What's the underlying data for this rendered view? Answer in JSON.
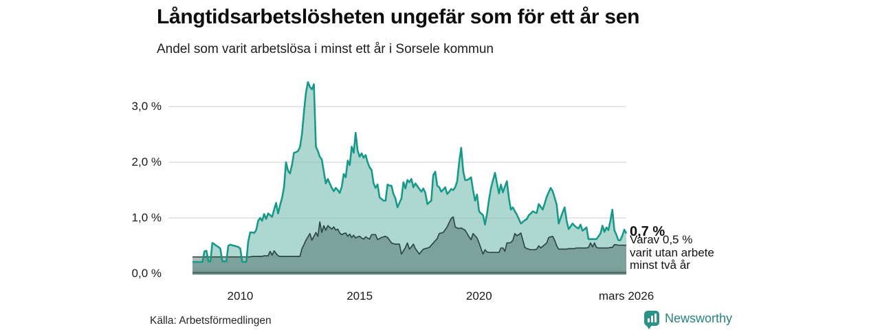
{
  "title": "Långtidsarbetslösheten ungefär som för ett år sen",
  "subtitle": "Andel som varit arbetslösa i minst ett år i Sorsele kommun",
  "source": "Källa: Arbetsförmedlingen",
  "brand": {
    "name": "Newsworthy"
  },
  "annotations": {
    "latest_total": "0,7 %",
    "subset_note": "Varav 0,5 %\nvarit utan arbete\nminst två år"
  },
  "axes": {
    "y_ticks": [
      {
        "label": "3,0 %",
        "value": 3.0
      },
      {
        "label": "2,0 %",
        "value": 2.0
      },
      {
        "label": "1,0 %",
        "value": 1.0
      },
      {
        "label": "0,0 %",
        "value": 0.0
      }
    ],
    "x_ticks": [
      {
        "label": "2010",
        "month": 24
      },
      {
        "label": "2015",
        "month": 84
      },
      {
        "label": "2020",
        "month": 144
      },
      {
        "label": "mars 2026",
        "month": 218
      }
    ]
  },
  "colors": {
    "series1_line": "#17998a",
    "series1_fill": "rgba(125,190,179,0.62)",
    "series2_line": "#2b4845",
    "series2_fill": "rgba(45,75,70,0.38)",
    "grid": "#d8d8d8",
    "band_light": "#7b9d96",
    "band_dark": "#44635d",
    "band_mid": "#6f918a"
  },
  "chart_data": {
    "type": "area",
    "x_start": "2008-01",
    "x_end": "2026-03",
    "interval": "monthly",
    "ylim": [
      0,
      3.6
    ],
    "grid": true,
    "series": [
      {
        "name": "Andel arbetslösa minst ett år",
        "latest_value": 0.7,
        "values": [
          0.21,
          0.21,
          0.21,
          0.21,
          0.21,
          0.21,
          0.4,
          0.41,
          0.22,
          0.22,
          0.55,
          0.53,
          0.5,
          0.48,
          0.45,
          0.22,
          0.22,
          0.22,
          0.5,
          0.52,
          0.51,
          0.5,
          0.49,
          0.48,
          0.45,
          0.21,
          0.21,
          0.21,
          0.57,
          0.74,
          0.74,
          0.73,
          0.78,
          0.95,
          1.0,
          0.95,
          1.07,
          0.98,
          1.08,
          1.05,
          1.02,
          1.15,
          1.27,
          1.08,
          1.23,
          1.36,
          1.55,
          2.0,
          1.85,
          1.8,
          1.95,
          2.17,
          2.18,
          2.2,
          2.27,
          2.5,
          2.9,
          3.25,
          3.44,
          3.35,
          3.31,
          3.4,
          2.28,
          2.2,
          2.1,
          2.05,
          1.83,
          1.62,
          1.7,
          1.62,
          1.54,
          1.48,
          1.54,
          1.5,
          1.45,
          1.56,
          1.79,
          1.73,
          2.03,
          1.95,
          2.28,
          2.17,
          2.53,
          2.21,
          2.1,
          2.16,
          2.08,
          2.13,
          2.0,
          1.91,
          1.86,
          1.62,
          1.54,
          1.6,
          1.37,
          1.34,
          1.31,
          1.31,
          1.6,
          1.58,
          1.58,
          1.43,
          1.35,
          1.19,
          1.27,
          1.35,
          1.64,
          1.53,
          1.68,
          1.64,
          1.7,
          1.55,
          1.62,
          1.57,
          1.52,
          1.47,
          1.53,
          1.45,
          1.25,
          1.28,
          1.31,
          1.77,
          1.83,
          1.58,
          1.55,
          1.47,
          1.51,
          1.55,
          1.43,
          1.47,
          1.52,
          1.5,
          1.55,
          1.66,
          2.0,
          2.26,
          1.85,
          1.68,
          1.68,
          1.7,
          1.73,
          1.5,
          1.31,
          1.42,
          1.12,
          1.08,
          1.05,
          0.88,
          1.08,
          1.33,
          1.54,
          1.68,
          1.81,
          1.62,
          1.44,
          1.6,
          1.46,
          1.56,
          1.66,
          1.36,
          1.15,
          1.19,
          1.12,
          1.06,
          0.98,
          0.9,
          0.93,
          0.96,
          0.98,
          1.05,
          1.08,
          1.12,
          1.1,
          1.09,
          1.25,
          1.2,
          1.15,
          1.26,
          1.38,
          1.46,
          1.54,
          1.48,
          1.36,
          1.24,
          0.9,
          1.0,
          1.1,
          1.19,
          0.95,
          0.8,
          0.85,
          0.9,
          0.86,
          0.83,
          0.81,
          0.88,
          0.77,
          0.8,
          0.83,
          0.62,
          0.62,
          0.62,
          0.62,
          0.62,
          0.67,
          0.72,
          0.86,
          0.75,
          0.83,
          0.78,
          0.95,
          1.15,
          0.78,
          0.7,
          0.6,
          0.6,
          0.68,
          0.79,
          0.72
        ]
      },
      {
        "name": "Varav utan arbete minst två år",
        "latest_value": 0.5,
        "values": [
          0.3,
          0.3,
          0.3,
          0.3,
          0.3,
          0.3,
          0.3,
          0.3,
          0.3,
          0.3,
          0.3,
          0.3,
          0.3,
          0.3,
          0.3,
          0.3,
          0.3,
          0.3,
          0.3,
          0.3,
          0.3,
          0.3,
          0.3,
          0.3,
          0.3,
          0.3,
          0.3,
          0.3,
          0.3,
          0.3,
          0.31,
          0.31,
          0.31,
          0.31,
          0.31,
          0.31,
          0.32,
          0.32,
          0.32,
          0.4,
          0.33,
          0.41,
          0.36,
          0.32,
          0.31,
          0.31,
          0.31,
          0.31,
          0.31,
          0.31,
          0.31,
          0.31,
          0.31,
          0.31,
          0.31,
          0.45,
          0.52,
          0.6,
          0.66,
          0.72,
          0.6,
          0.67,
          0.74,
          0.67,
          0.93,
          0.74,
          0.86,
          0.78,
          0.86,
          0.83,
          0.8,
          0.84,
          0.78,
          0.8,
          0.73,
          0.7,
          0.72,
          0.73,
          0.67,
          0.71,
          0.65,
          0.69,
          0.64,
          0.66,
          0.67,
          0.64,
          0.62,
          0.66,
          0.64,
          0.62,
          0.7,
          0.7,
          0.7,
          0.61,
          0.63,
          0.65,
          0.66,
          0.67,
          0.65,
          0.6,
          0.55,
          0.54,
          0.53,
          0.53,
          0.53,
          0.35,
          0.41,
          0.47,
          0.55,
          0.44,
          0.48,
          0.53,
          0.45,
          0.4,
          0.35,
          0.4,
          0.44,
          0.45,
          0.46,
          0.47,
          0.51,
          0.55,
          0.59,
          0.63,
          0.72,
          0.73,
          0.74,
          0.79,
          0.84,
          0.92,
          0.99,
          1.02,
          0.84,
          0.82,
          0.81,
          0.82,
          0.8,
          0.78,
          0.72,
          0.66,
          0.61,
          0.72,
          0.68,
          0.64,
          0.55,
          0.45,
          0.35,
          0.43,
          0.39,
          0.38,
          0.38,
          0.38,
          0.38,
          0.38,
          0.38,
          0.46,
          0.46,
          0.4,
          0.55,
          0.55,
          0.56,
          0.6,
          0.72,
          0.68,
          0.7,
          0.73,
          0.6,
          0.47,
          0.45,
          0.44,
          0.43,
          0.43,
          0.43,
          0.44,
          0.5,
          0.46,
          0.49,
          0.52,
          0.55,
          0.65,
          0.66,
          0.67,
          0.6,
          0.5,
          0.44,
          0.44,
          0.44,
          0.44,
          0.44,
          0.45,
          0.45,
          0.45,
          0.45,
          0.46,
          0.46,
          0.46,
          0.46,
          0.46,
          0.46,
          0.47,
          0.55,
          0.48,
          0.55,
          0.47,
          0.46,
          0.46,
          0.46,
          0.46,
          0.46,
          0.46,
          0.47,
          0.47,
          0.52,
          0.52,
          0.51,
          0.51,
          0.51,
          0.51,
          0.51
        ]
      }
    ]
  }
}
